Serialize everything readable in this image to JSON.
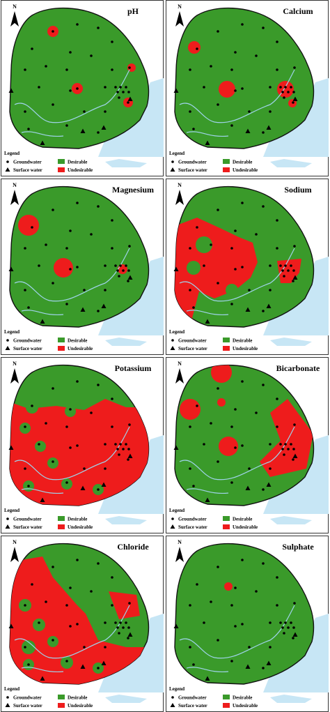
{
  "panels": [
    {
      "title": "pH"
    },
    {
      "title": "Calcium"
    },
    {
      "title": "Magnesium"
    },
    {
      "title": "Sodium"
    },
    {
      "title": "Potassium"
    },
    {
      "title": "Bicarbonate"
    },
    {
      "title": "Chloride"
    },
    {
      "title": "Sulphate"
    }
  ],
  "north": "N",
  "legend": {
    "title": "Legend",
    "groundwater": "Groundwater",
    "surface_water": "Surface water",
    "desirable": "Desirable",
    "undesirable": "Undesirable"
  }
}
